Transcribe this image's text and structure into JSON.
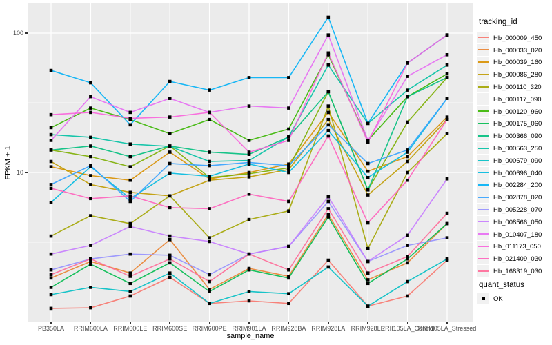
{
  "figure": {
    "background": "#FFFFFF",
    "panel_background": "#EBEBEB",
    "gridline_color": "#FFFFFF",
    "point_color": "#000000",
    "axis_text_color": "#4D4D4D"
  },
  "axes": {
    "y_title": "FPKM + 1",
    "x_title": "sample_name",
    "y_tick_labels": [
      "100",
      "10"
    ]
  },
  "legend": {
    "tracking_title": "tracking_id",
    "quant_title": "quant_status",
    "quant_items": [
      {
        "label": "OK",
        "marker": "black-square"
      }
    ]
  },
  "chart_data": {
    "type": "line",
    "title": "",
    "xlabel": "sample_name",
    "ylabel": "FPKM + 1",
    "y_scale": "log10",
    "ylim": [
      0.85,
      160
    ],
    "grid": true,
    "legend_position": "right",
    "y_major_ticks": [
      100,
      10
    ],
    "y_minor_gridlines": [
      31.623,
      3.1623
    ],
    "point_marker": "black-square",
    "x_categories": [
      "PB350LA",
      "RRIM600LA",
      "RRIM600LE",
      "RRIM600SE",
      "RRIM600PE",
      "RRIM901LA",
      "RRIM928BA",
      "RRIM928LA",
      "RRIM928LE",
      "RRII105LA_Control",
      "RRII105LA_Stressed"
    ],
    "series": [
      {
        "name": "Hb_000009_450",
        "color": "#F8766D",
        "values": [
          1.06,
          1.07,
          1.3,
          1.77,
          1.15,
          1.2,
          1.15,
          2.35,
          1.1,
          1.3,
          2.35
        ]
      },
      {
        "name": "Hb_000033_020",
        "color": "#EA8331",
        "values": [
          1.75,
          2.3,
          1.9,
          3.3,
          1.45,
          2.05,
          1.8,
          5.0,
          1.7,
          2.25,
          4.3
        ]
      },
      {
        "name": "Hb_000039_160",
        "color": "#D89000",
        "values": [
          11.0,
          9.5,
          8.8,
          14.0,
          9.0,
          10.0,
          11.5,
          27.0,
          10.2,
          13.0,
          25.0
        ]
      },
      {
        "name": "Hb_000086_280",
        "color": "#C09B00",
        "values": [
          12.0,
          8.2,
          7.2,
          6.8,
          8.8,
          9.3,
          10.5,
          24.0,
          6.9,
          12.0,
          24.0
        ]
      },
      {
        "name": "Hb_000110_320",
        "color": "#A3A500",
        "values": [
          3.5,
          4.9,
          4.3,
          6.8,
          3.4,
          4.6,
          5.3,
          30.0,
          2.85,
          10.0,
          19.0
        ]
      },
      {
        "name": "Hb_000117_090",
        "color": "#7CAE00",
        "values": [
          14.5,
          13.0,
          11.0,
          15.5,
          9.2,
          9.8,
          10.8,
          38.0,
          7.5,
          23.0,
          48.0
        ]
      },
      {
        "name": "Hb_000120_960",
        "color": "#39B600",
        "values": [
          21.0,
          29.0,
          24.0,
          19.0,
          24.0,
          17.0,
          20.5,
          70.0,
          17.0,
          35.0,
          51.0
        ]
      },
      {
        "name": "Hb_000175_060",
        "color": "#00BB4E",
        "values": [
          1.5,
          2.2,
          1.6,
          2.25,
          1.4,
          2.0,
          1.75,
          4.8,
          1.6,
          2.4,
          4.3
        ]
      },
      {
        "name": "Hb_000366_090",
        "color": "#00BF7D",
        "values": [
          14.5,
          15.5,
          13.0,
          15.5,
          14.0,
          13.5,
          18.0,
          38.0,
          7.5,
          35.0,
          48.0
        ]
      },
      {
        "name": "Hb_000563_250",
        "color": "#00C1A3",
        "values": [
          18.7,
          17.9,
          16.0,
          15.4,
          12.0,
          12.2,
          18.0,
          59.0,
          22.5,
          39.0,
          59.0
        ]
      },
      {
        "name": "Hb_000679_090",
        "color": "#00BFC4",
        "values": [
          1.33,
          1.5,
          1.4,
          1.9,
          1.15,
          1.4,
          1.35,
          2.1,
          1.1,
          1.65,
          2.4
        ]
      },
      {
        "name": "Hb_000696_040",
        "color": "#00BAE0",
        "values": [
          6.1,
          11.0,
          6.5,
          9.9,
          9.4,
          11.5,
          10.0,
          20.0,
          9.2,
          14.0,
          34.0
        ]
      },
      {
        "name": "Hb_002284_200",
        "color": "#00B0F6",
        "values": [
          54.0,
          44.0,
          22.0,
          45.0,
          39.0,
          48.0,
          48.0,
          130.0,
          22.5,
          61.0,
          97.0
        ]
      },
      {
        "name": "Hb_002878_020",
        "color": "#35A2FF",
        "values": [
          8.2,
          11.2,
          6.2,
          11.6,
          11.2,
          11.8,
          11.2,
          22.0,
          11.6,
          14.5,
          34.0
        ]
      },
      {
        "name": "Hb_005228_070",
        "color": "#9590FF",
        "values": [
          2.0,
          2.4,
          2.6,
          2.55,
          1.85,
          2.6,
          2.95,
          6.2,
          2.3,
          3.0,
          3.4
        ]
      },
      {
        "name": "Hb_008566_050",
        "color": "#C77CFF",
        "values": [
          2.6,
          3.0,
          4.1,
          3.5,
          3.2,
          2.6,
          2.95,
          6.7,
          2.3,
          3.55,
          9.0
        ]
      },
      {
        "name": "Hb_010407_180",
        "color": "#E76BF3",
        "values": [
          17.0,
          35.0,
          27.0,
          34.0,
          27.0,
          30.0,
          29.0,
          97.0,
          17.0,
          49.0,
          70.0
        ]
      },
      {
        "name": "Hb_011173_050",
        "color": "#FA62DB",
        "values": [
          26.0,
          27.0,
          24.5,
          25.0,
          27.0,
          14.0,
          17.0,
          72.0,
          16.5,
          61.0,
          97.0
        ]
      },
      {
        "name": "Hb_021409_030",
        "color": "#FF62BC",
        "values": [
          7.7,
          6.5,
          6.8,
          5.6,
          5.5,
          7.0,
          6.2,
          18.3,
          4.35,
          8.8,
          24.0
        ]
      },
      {
        "name": "Hb_168319_030",
        "color": "#FF6A98",
        "values": [
          1.85,
          2.4,
          1.8,
          2.4,
          1.65,
          2.6,
          2.0,
          5.5,
          1.9,
          2.5,
          5.1
        ]
      }
    ]
  }
}
